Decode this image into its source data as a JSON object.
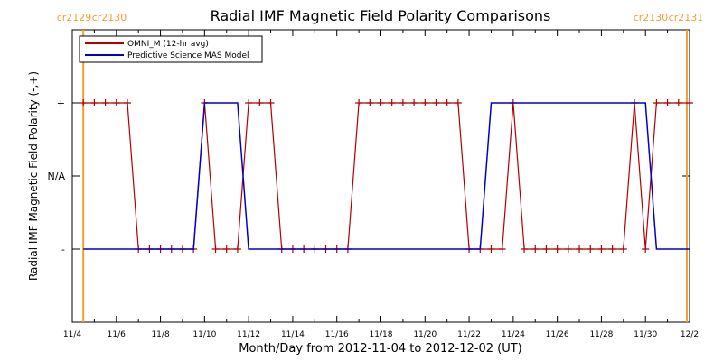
{
  "chart_data": {
    "type": "line",
    "title": "Radial IMF Magnetic Field Polarity Comparisons",
    "xlabel": "Month/Day from 2012-11-04 to 2012-12-02 (UT)",
    "ylabel": "Radial IMF Magnetic Field Polarity (-,+)",
    "x_unit": "days (UT)",
    "xlim": [
      "2012-11-04",
      "2012-12-02"
    ],
    "ylim": [
      -2,
      2
    ],
    "y_ticks": [
      {
        "value": 1,
        "label": "+"
      },
      {
        "value": 0,
        "label": "N/A"
      },
      {
        "value": -1,
        "label": "-"
      }
    ],
    "x_ticks": [
      "11/4",
      "11/6",
      "11/8",
      "11/10",
      "11/12",
      "11/14",
      "11/16",
      "11/18",
      "11/20",
      "11/22",
      "11/24",
      "11/26",
      "11/28",
      "11/30",
      "12/2"
    ],
    "grid": false,
    "legend_position": "top-left",
    "rotations": [
      {
        "label_left": "cr2129",
        "label_right": "cr2130",
        "x": "2012-11-04 12:00",
        "side": "left"
      },
      {
        "label_left": "cr2130",
        "label_right": "cr2131",
        "x": "2012-12-01 21:00",
        "side": "right"
      }
    ],
    "series": [
      {
        "name": "OMNI_M (12-hr avg)",
        "color": "#b00000",
        "marker": "+",
        "x": [
          "2012-11-04 12:00",
          "2012-11-05 00:00",
          "2012-11-05 12:00",
          "2012-11-06 00:00",
          "2012-11-06 12:00",
          "2012-11-07 00:00",
          "2012-11-07 12:00",
          "2012-11-08 00:00",
          "2012-11-08 12:00",
          "2012-11-09 00:00",
          "2012-11-09 12:00",
          "2012-11-10 00:00",
          "2012-11-10 12:00",
          "2012-11-11 00:00",
          "2012-11-11 12:00",
          "2012-11-12 00:00",
          "2012-11-12 12:00",
          "2012-11-13 00:00",
          "2012-11-13 12:00",
          "2012-11-14 00:00",
          "2012-11-14 12:00",
          "2012-11-15 00:00",
          "2012-11-15 12:00",
          "2012-11-16 00:00",
          "2012-11-16 12:00",
          "2012-11-17 00:00",
          "2012-11-17 12:00",
          "2012-11-18 00:00",
          "2012-11-18 12:00",
          "2012-11-19 00:00",
          "2012-11-19 12:00",
          "2012-11-20 00:00",
          "2012-11-20 12:00",
          "2012-11-21 00:00",
          "2012-11-21 12:00",
          "2012-11-22 00:00",
          "2012-11-22 12:00",
          "2012-11-23 00:00",
          "2012-11-23 12:00",
          "2012-11-24 00:00",
          "2012-11-24 12:00",
          "2012-11-25 00:00",
          "2012-11-25 12:00",
          "2012-11-26 00:00",
          "2012-11-26 12:00",
          "2012-11-27 00:00",
          "2012-11-27 12:00",
          "2012-11-28 00:00",
          "2012-11-28 12:00",
          "2012-11-29 00:00",
          "2012-11-29 12:00",
          "2012-11-30 00:00",
          "2012-11-30 12:00",
          "2012-12-01 00:00",
          "2012-12-01 12:00",
          "2012-12-02 00:00"
        ],
        "y": [
          1,
          1,
          1,
          1,
          1,
          -1,
          -1,
          -1,
          -1,
          -1,
          -1,
          1,
          -1,
          -1,
          -1,
          1,
          1,
          1,
          -1,
          -1,
          -1,
          -1,
          -1,
          -1,
          -1,
          1,
          1,
          1,
          1,
          1,
          1,
          1,
          1,
          1,
          1,
          -1,
          -1,
          -1,
          -1,
          1,
          -1,
          -1,
          -1,
          -1,
          -1,
          -1,
          -1,
          -1,
          -1,
          -1,
          1,
          -1,
          1,
          1,
          1,
          1
        ]
      },
      {
        "name": "Predictive Science MAS Model",
        "color": "#0000c8",
        "marker": "none",
        "x": [
          "2012-11-04 12:00",
          "2012-11-09 12:00",
          "2012-11-10 00:00",
          "2012-11-11 12:00",
          "2012-11-12 00:00",
          "2012-11-22 12:00",
          "2012-11-23 00:00",
          "2012-11-30 00:00",
          "2012-11-30 12:00",
          "2012-12-01 00:00",
          "2012-12-01 12:00",
          "2012-12-02 00:00"
        ],
        "y": [
          -1,
          -1,
          1,
          1,
          -1,
          -1,
          1,
          1,
          -1,
          -1,
          -1,
          -1
        ]
      }
    ]
  }
}
